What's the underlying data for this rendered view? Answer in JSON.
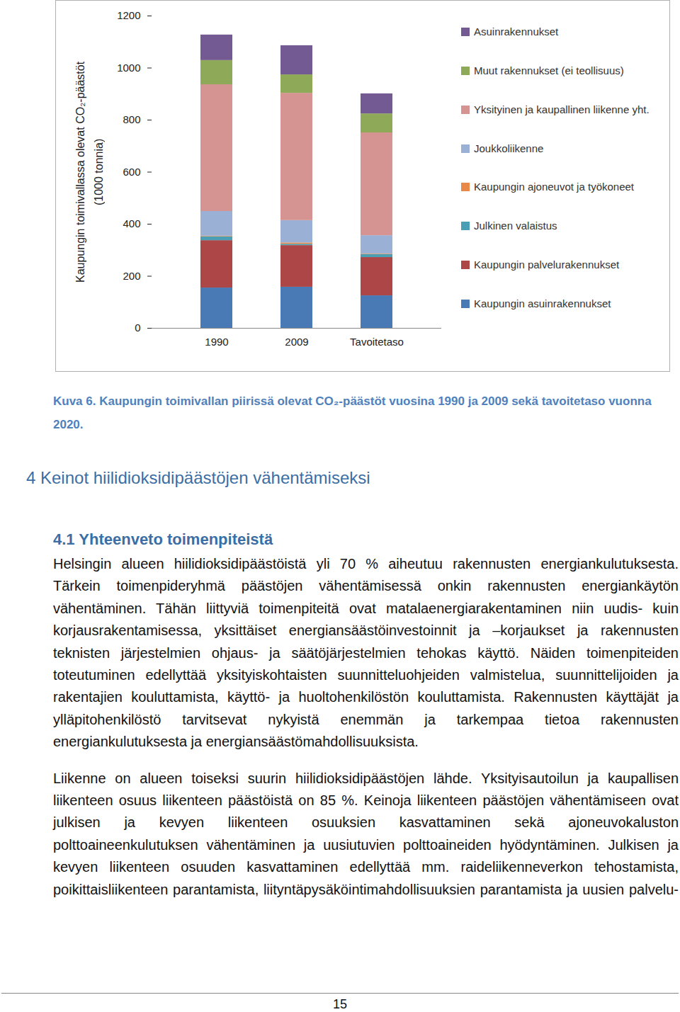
{
  "chart_data": {
    "type": "bar",
    "stacked": true,
    "categories": [
      "1990",
      "2009",
      "Tavoitetaso"
    ],
    "y_label": "Kaupungin toimivallassa olevat CO₂-päästöt\n(1000 tonnia)",
    "ylim": [
      0,
      1200
    ],
    "yticks": [
      0,
      200,
      400,
      600,
      800,
      1000,
      1200
    ],
    "legend": "right",
    "series": [
      {
        "name": "Kaupungin asuinrakennukset",
        "color": "#4a7ab5",
        "values": [
          155,
          158,
          125
        ]
      },
      {
        "name": "Kaupungin palvelurakennukset",
        "color": "#ac4647",
        "values": [
          182,
          160,
          147
        ]
      },
      {
        "name": "Julkinen valaistus",
        "color": "#4a9fb5",
        "values": [
          15,
          5,
          12
        ]
      },
      {
        "name": "Kaupungin ajoneuvot ja työkoneet",
        "color": "#e8894a",
        "values": [
          2,
          5,
          2
        ]
      },
      {
        "name": "Joukkoliikenne",
        "color": "#9ab0d4",
        "values": [
          95,
          86,
          70
        ]
      },
      {
        "name": "Yksityinen ja kaupallinen liikenne yht.",
        "color": "#d59392",
        "values": [
          487,
          489,
          395
        ]
      },
      {
        "name": "Muut rakennukset (ei teollisuus)",
        "color": "#8ea957",
        "values": [
          93,
          71,
          73
        ]
      },
      {
        "name": "Asuinrakennukset",
        "color": "#735a92",
        "values": [
          98,
          112,
          77
        ]
      }
    ]
  },
  "document": {
    "caption": "Kuva 6. Kaupungin toimivallan piirissä olevat CO₂-päästöt vuosina 1990 ja 2009 sekä tavoitetaso vuonna 2020.",
    "heading": "4 Keinot hiilidioksidipäästöjen vähentämiseksi",
    "subheading": "4.1 Yhteenveto toimenpiteistä",
    "paragraphs": [
      "Helsingin alueen hiilidioksidipäästöistä yli 70 % aiheutuu rakennusten energiankulutuksesta. Tärkein toimenpideryhmä päästöjen vähentämisessä onkin rakennusten energiankäytön vähentäminen. Tähän liittyviä toimenpiteitä ovat matalaenergiarakentaminen niin uudis- kuin korjausrakentamisessa, yksittäiset energiansäästöinvestoinnit ja –korjaukset ja rakennusten teknisten järjestelmien ohjaus- ja säätöjärjestelmien tehokas käyttö. Näiden toimenpiteiden toteutuminen edellyttää yksityiskohtaisten suunnitteluohjeiden valmistelua, suunnittelijoiden ja rakentajien kouluttamista, käyttö- ja huoltohenkilöstön kouluttamista. Rakennusten käyttäjät ja ylläpitohenkilöstö tarvitsevat nykyistä enemmän ja tarkempaa tietoa rakennusten energiankulutuksesta ja energiansäästömahdollisuuksista.",
      "Liikenne on alueen toiseksi suurin hiilidioksidipäästöjen lähde. Yksityisautoilun ja kaupallisen liikenteen osuus liikenteen päästöistä on 85 %. Keinoja liikenteen päästöjen vähentämiseen ovat julkisen ja kevyen liikenteen osuuksien kasvattaminen sekä ajoneuvokaluston polttoaineenkulutuksen vähentäminen ja uusiutuvien polttoaineiden hyödyntäminen. Julkisen ja kevyen liikenteen osuuden kasvattaminen edellyttää mm. raideliikenneverkon tehostamista, poikittaisliikenteen parantamista, liityntäpysäköintimahdollisuuksien parantamista ja uusien palvelu-"
    ],
    "page_number": "15"
  }
}
